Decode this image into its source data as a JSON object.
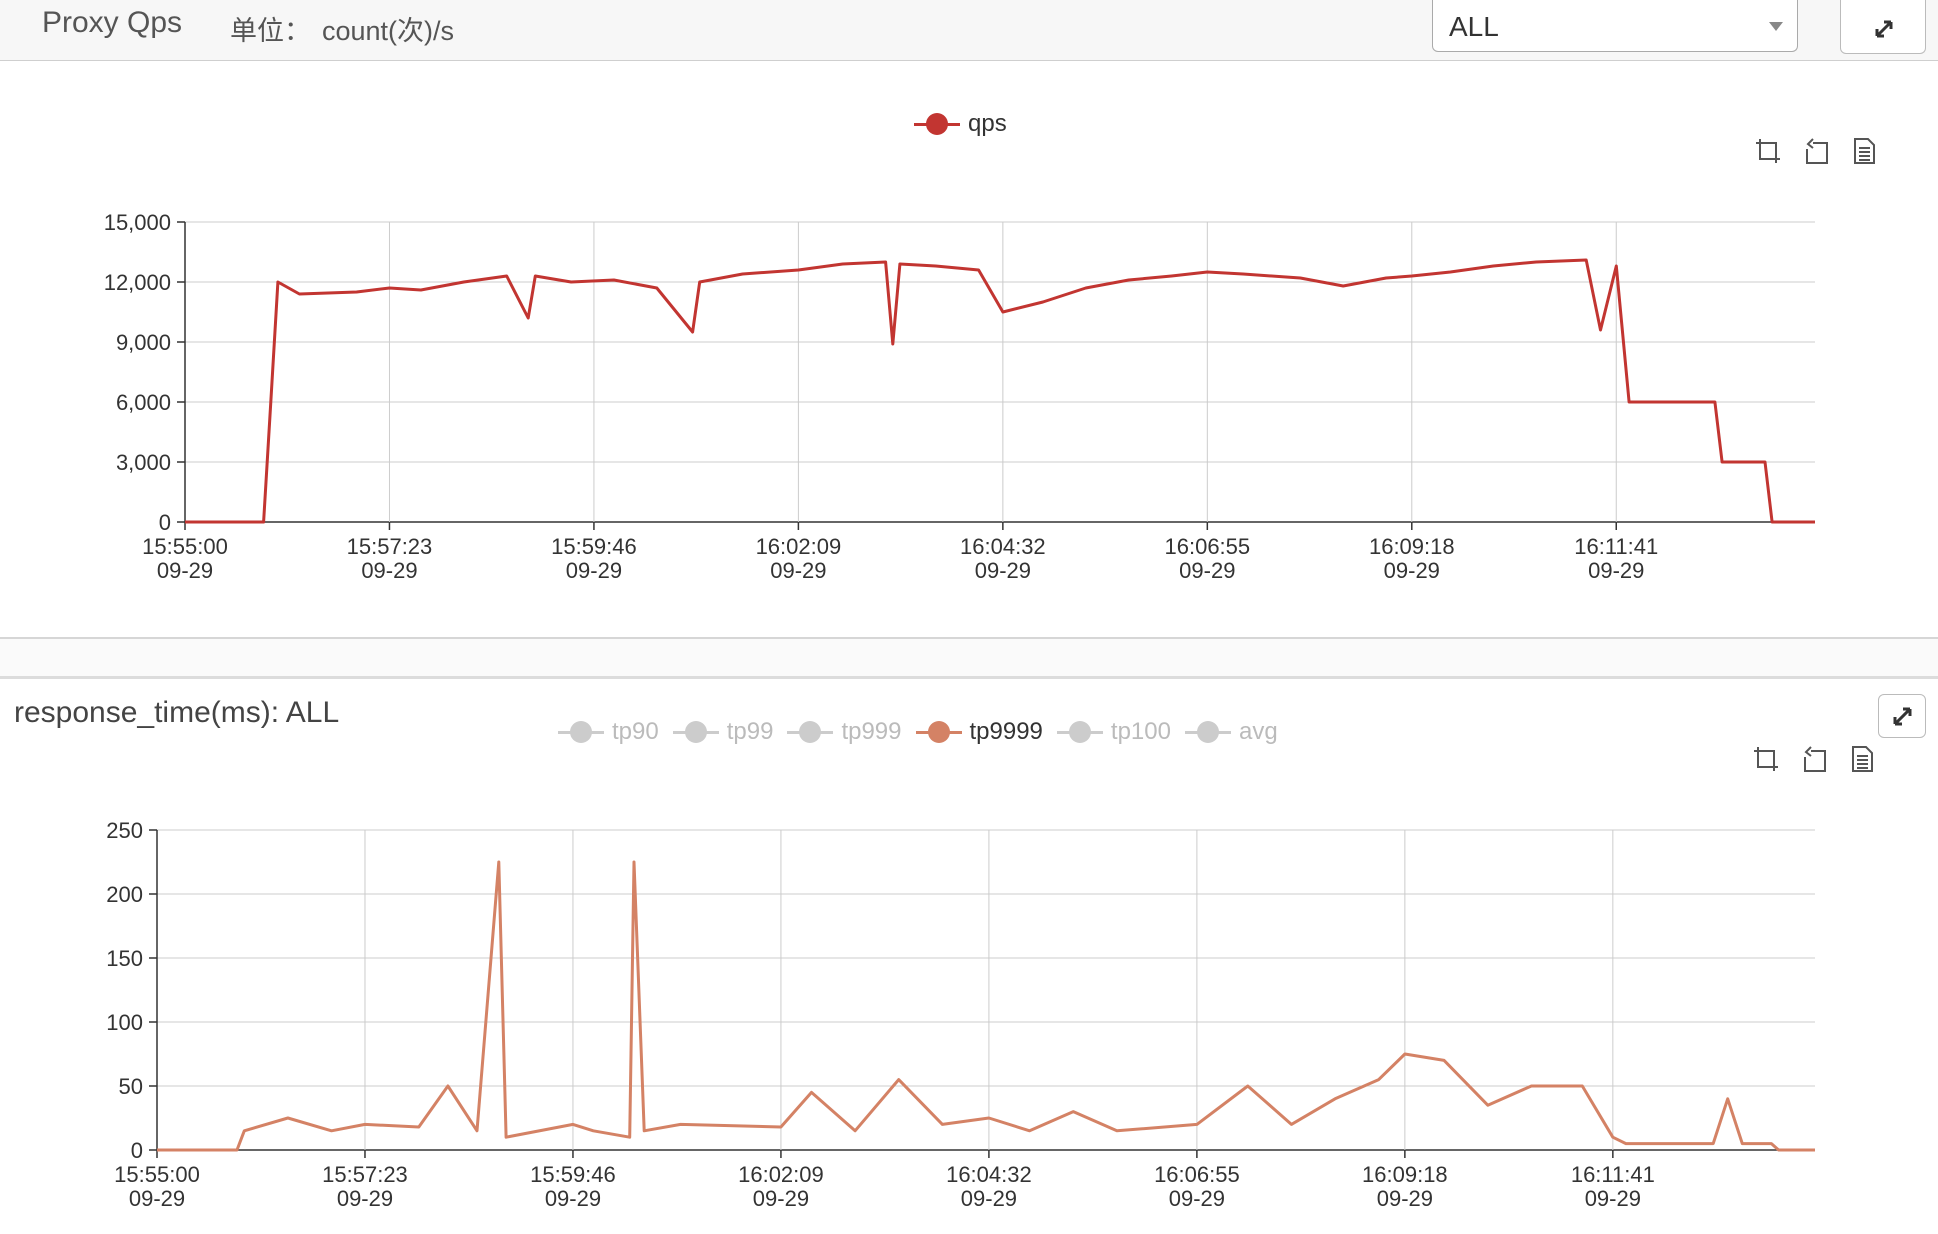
{
  "panel": {
    "title": "Proxy Qps",
    "unit_label": "单位：",
    "unit_value": "count(次)/s",
    "select_value": "ALL"
  },
  "qps_legend": [
    {
      "label": "qps",
      "color": "#c23531",
      "active": true
    }
  ],
  "rt_title": "response_time(ms): ALL",
  "rt_legend": [
    {
      "label": "tp90",
      "active": false
    },
    {
      "label": "tp99",
      "active": false
    },
    {
      "label": "tp999",
      "active": false
    },
    {
      "label": "tp9999",
      "active": true
    },
    {
      "label": "tp100",
      "active": false
    },
    {
      "label": "avg",
      "active": false
    }
  ],
  "icons": {
    "expand": "expand-arrows-icon",
    "zoom": "data-zoom-icon",
    "restore": "restore-icon",
    "data_view": "data-view-icon"
  },
  "colors": {
    "qps": "#c23531",
    "tp9999": "#d48265",
    "inactive": "#cccccc",
    "grid": "#cccccc",
    "axis": "#333333"
  },
  "chart_data": [
    {
      "type": "line",
      "title": "",
      "x_tick_labels": [
        {
          "time": "15:55:00",
          "date": "09-29"
        },
        {
          "time": "15:57:23",
          "date": "09-29"
        },
        {
          "time": "15:59:46",
          "date": "09-29"
        },
        {
          "time": "16:02:09",
          "date": "09-29"
        },
        {
          "time": "16:04:32",
          "date": "09-29"
        },
        {
          "time": "16:06:55",
          "date": "09-29"
        },
        {
          "time": "16:09:18",
          "date": "09-29"
        },
        {
          "time": "16:11:41",
          "date": "09-29"
        }
      ],
      "y_ticks": [
        "0",
        "3,000",
        "6,000",
        "9,000",
        "12,000",
        "15,000"
      ],
      "ylim": [
        0,
        15000
      ],
      "xlim": [
        "15:55:00",
        "16:14:00"
      ],
      "grid": true,
      "legend_position": "top-center",
      "series": [
        {
          "name": "qps",
          "color": "#c23531",
          "points": [
            [
              "15:55:00",
              0
            ],
            [
              "15:55:55",
              0
            ],
            [
              "15:56:00",
              6000
            ],
            [
              "15:56:05",
              12000
            ],
            [
              "15:56:20",
              11400
            ],
            [
              "15:57:00",
              11500
            ],
            [
              "15:57:23",
              11700
            ],
            [
              "15:57:45",
              11600
            ],
            [
              "15:58:15",
              12000
            ],
            [
              "15:58:45",
              12300
            ],
            [
              "15:59:00",
              10200
            ],
            [
              "15:59:05",
              12300
            ],
            [
              "15:59:30",
              12000
            ],
            [
              "16:00:00",
              12100
            ],
            [
              "16:00:30",
              11700
            ],
            [
              "16:00:55",
              9500
            ],
            [
              "16:01:00",
              12000
            ],
            [
              "16:01:30",
              12400
            ],
            [
              "16:02:09",
              12600
            ],
            [
              "16:02:40",
              12900
            ],
            [
              "16:03:10",
              13000
            ],
            [
              "16:03:15",
              8900
            ],
            [
              "16:03:20",
              12900
            ],
            [
              "16:03:45",
              12800
            ],
            [
              "16:04:15",
              12600
            ],
            [
              "16:04:32",
              10500
            ],
            [
              "16:05:00",
              11000
            ],
            [
              "16:05:30",
              11700
            ],
            [
              "16:06:00",
              12100
            ],
            [
              "16:06:30",
              12300
            ],
            [
              "16:06:55",
              12500
            ],
            [
              "16:07:20",
              12400
            ],
            [
              "16:08:00",
              12200
            ],
            [
              "16:08:30",
              11800
            ],
            [
              "16:09:00",
              12200
            ],
            [
              "16:09:18",
              12300
            ],
            [
              "16:09:45",
              12500
            ],
            [
              "16:10:15",
              12800
            ],
            [
              "16:10:45",
              13000
            ],
            [
              "16:11:20",
              13100
            ],
            [
              "16:11:30",
              9600
            ],
            [
              "16:11:41",
              12800
            ],
            [
              "16:11:50",
              6000
            ],
            [
              "16:12:50",
              6000
            ],
            [
              "16:12:55",
              3000
            ],
            [
              "16:13:25",
              3000
            ],
            [
              "16:13:30",
              0
            ],
            [
              "16:14:00",
              0
            ]
          ]
        }
      ]
    },
    {
      "type": "line",
      "title": "response_time(ms): ALL",
      "x_tick_labels": [
        {
          "time": "15:55:00",
          "date": "09-29"
        },
        {
          "time": "15:57:23",
          "date": "09-29"
        },
        {
          "time": "15:59:46",
          "date": "09-29"
        },
        {
          "time": "16:02:09",
          "date": "09-29"
        },
        {
          "time": "16:04:32",
          "date": "09-29"
        },
        {
          "time": "16:06:55",
          "date": "09-29"
        },
        {
          "time": "16:09:18",
          "date": "09-29"
        },
        {
          "time": "16:11:41",
          "date": "09-29"
        }
      ],
      "y_ticks": [
        "0",
        "50",
        "100",
        "150",
        "200",
        "250"
      ],
      "ylim": [
        0,
        250
      ],
      "xlim": [
        "15:55:00",
        "16:14:00"
      ],
      "grid": true,
      "legend_position": "top-center",
      "series": [
        {
          "name": "tp9999",
          "color": "#d48265",
          "points": [
            [
              "15:55:00",
              0
            ],
            [
              "15:55:55",
              0
            ],
            [
              "15:56:00",
              15
            ],
            [
              "15:56:30",
              25
            ],
            [
              "15:57:00",
              15
            ],
            [
              "15:57:23",
              20
            ],
            [
              "15:58:00",
              18
            ],
            [
              "15:58:20",
              50
            ],
            [
              "15:58:40",
              15
            ],
            [
              "15:58:55",
              225
            ],
            [
              "15:59:00",
              10
            ],
            [
              "15:59:46",
              20
            ],
            [
              "16:00:00",
              15
            ],
            [
              "16:00:25",
              10
            ],
            [
              "16:00:28",
              225
            ],
            [
              "16:00:35",
              15
            ],
            [
              "16:01:00",
              20
            ],
            [
              "16:02:09",
              18
            ],
            [
              "16:02:30",
              45
            ],
            [
              "16:03:00",
              15
            ],
            [
              "16:03:30",
              55
            ],
            [
              "16:04:00",
              20
            ],
            [
              "16:04:32",
              25
            ],
            [
              "16:05:00",
              15
            ],
            [
              "16:05:30",
              30
            ],
            [
              "16:06:00",
              15
            ],
            [
              "16:06:55",
              20
            ],
            [
              "16:07:30",
              50
            ],
            [
              "16:08:00",
              20
            ],
            [
              "16:08:30",
              40
            ],
            [
              "16:09:00",
              55
            ],
            [
              "16:09:18",
              75
            ],
            [
              "16:09:45",
              70
            ],
            [
              "16:10:15",
              35
            ],
            [
              "16:10:45",
              50
            ],
            [
              "16:11:20",
              50
            ],
            [
              "16:11:41",
              10
            ],
            [
              "16:11:50",
              5
            ],
            [
              "16:12:50",
              5
            ],
            [
              "16:13:00",
              40
            ],
            [
              "16:13:10",
              5
            ],
            [
              "16:13:30",
              5
            ],
            [
              "16:13:35",
              0
            ],
            [
              "16:14:00",
              0
            ]
          ]
        }
      ]
    }
  ]
}
